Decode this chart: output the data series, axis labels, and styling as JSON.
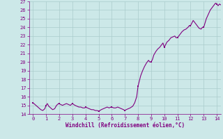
{
  "title": "",
  "xlabel": "Windchill (Refroidissement éolien,°C)",
  "ylabel": "",
  "xlim": [
    -0.3,
    14.3
  ],
  "ylim": [
    14,
    27
  ],
  "xticks": [
    0,
    1,
    2,
    3,
    4,
    5,
    6,
    7,
    8,
    9,
    10,
    11,
    12,
    13,
    14
  ],
  "yticks": [
    14,
    15,
    16,
    17,
    18,
    19,
    20,
    21,
    22,
    23,
    24,
    25,
    26,
    27
  ],
  "line_color": "#800080",
  "marker_color": "#800080",
  "bg_color": "#cce8e8",
  "grid_color": "#aacccc",
  "x": [
    0.0,
    0.15,
    0.3,
    0.45,
    0.6,
    0.75,
    0.9,
    1.0,
    1.1,
    1.2,
    1.35,
    1.5,
    1.65,
    1.8,
    1.95,
    2.0,
    2.1,
    2.25,
    2.4,
    2.55,
    2.7,
    2.85,
    3.0,
    3.1,
    3.2,
    3.35,
    3.5,
    3.65,
    3.8,
    3.95,
    4.0,
    4.15,
    4.3,
    4.45,
    4.6,
    4.75,
    4.9,
    5.0,
    5.1,
    5.2,
    5.35,
    5.5,
    5.65,
    5.8,
    5.95,
    6.0,
    6.15,
    6.3,
    6.45,
    6.6,
    6.75,
    6.9,
    7.0,
    7.1,
    7.25,
    7.4,
    7.6,
    7.75,
    7.9,
    8.0,
    8.1,
    8.2,
    8.35,
    8.5,
    8.65,
    8.8,
    8.9,
    9.0,
    9.1,
    9.2,
    9.35,
    9.5,
    9.65,
    9.8,
    9.9,
    10.0,
    10.1,
    10.2,
    10.35,
    10.5,
    10.65,
    10.8,
    10.9,
    11.0,
    11.1,
    11.2,
    11.35,
    11.5,
    11.65,
    11.8,
    11.9,
    12.0,
    12.1,
    12.2,
    12.35,
    12.5,
    12.65,
    12.8,
    12.9,
    13.0,
    13.1,
    13.2,
    13.35,
    13.5,
    13.65,
    13.8,
    13.9,
    14.0,
    14.1,
    14.2,
    14.3
  ],
  "y": [
    15.3,
    15.1,
    14.9,
    14.7,
    14.5,
    14.4,
    14.6,
    15.0,
    15.2,
    14.9,
    14.7,
    14.5,
    14.6,
    15.0,
    15.2,
    15.2,
    15.1,
    15.0,
    15.1,
    15.2,
    15.1,
    15.0,
    15.2,
    15.1,
    15.0,
    14.9,
    14.8,
    14.8,
    14.7,
    14.7,
    14.8,
    14.7,
    14.6,
    14.5,
    14.5,
    14.4,
    14.4,
    14.3,
    14.4,
    14.5,
    14.6,
    14.7,
    14.8,
    14.7,
    14.8,
    14.8,
    14.7,
    14.7,
    14.8,
    14.7,
    14.6,
    14.5,
    14.4,
    14.5,
    14.6,
    14.7,
    14.9,
    15.3,
    16.0,
    17.2,
    17.8,
    18.4,
    19.0,
    19.5,
    19.9,
    20.2,
    20.0,
    20.0,
    20.3,
    20.8,
    21.2,
    21.5,
    21.7,
    22.0,
    22.2,
    21.7,
    22.0,
    22.3,
    22.5,
    22.8,
    22.9,
    23.0,
    22.8,
    22.8,
    23.0,
    23.2,
    23.5,
    23.7,
    23.8,
    24.0,
    24.2,
    24.2,
    24.5,
    24.8,
    24.5,
    24.2,
    23.9,
    23.8,
    24.0,
    24.0,
    24.5,
    25.0,
    25.5,
    26.0,
    26.3,
    26.6,
    26.8,
    26.7,
    26.5,
    26.7,
    26.6
  ],
  "marker_x": [
    0.0,
    1.0,
    2.0,
    3.0,
    4.0,
    5.0,
    6.0,
    7.0,
    8.0,
    9.0,
    10.0,
    11.0,
    12.0,
    13.0,
    14.0
  ],
  "marker_y": [
    15.3,
    15.0,
    15.2,
    15.2,
    14.8,
    14.3,
    14.8,
    14.4,
    17.2,
    20.0,
    21.7,
    22.8,
    24.2,
    24.0,
    26.7
  ]
}
